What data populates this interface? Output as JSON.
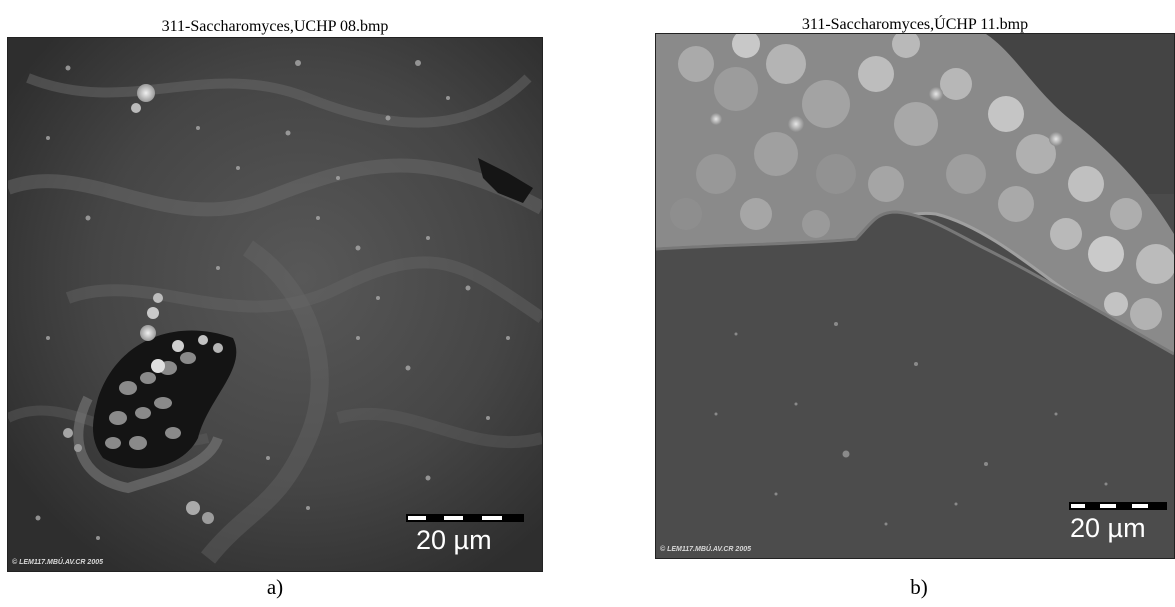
{
  "panels": [
    {
      "file_title": "311-Saccharomyces,UCHP 08.bmp",
      "scale_label": "20 µm",
      "copyright": "© LEM117.MBÚ.AV.CR 2005",
      "caption": "a)"
    },
    {
      "file_title": "311-Saccharomyces,ÚCHP 11.bmp",
      "scale_label": "20 µm",
      "copyright": "© LEM117.MBÚ.AV.CR 2005",
      "caption": "b)"
    }
  ],
  "colors": {
    "micrograph_dark": "#3a3a3a",
    "micrograph_mid": "#5a5a5a",
    "micrograph_bright": "#d0d0d0",
    "film_surface": "#4b4b4b"
  }
}
